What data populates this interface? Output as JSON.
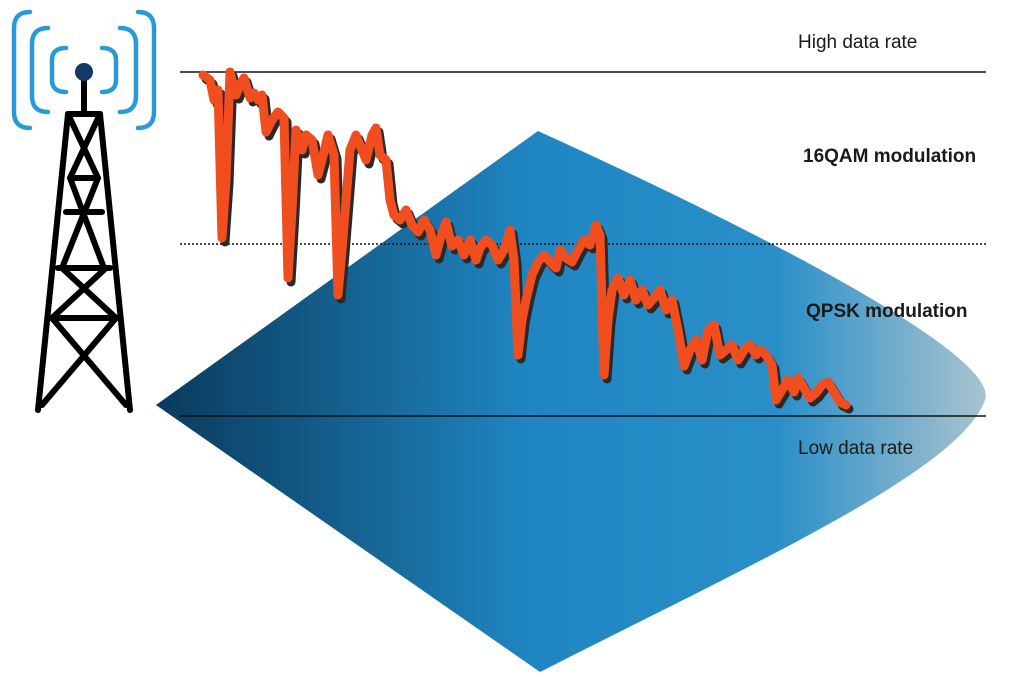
{
  "labels": {
    "high_data_rate": "High data rate",
    "modulation_16qam": "16QAM modulation",
    "modulation_qpsk": "QPSK modulation",
    "low_data_rate": "Low data rate"
  },
  "icons": {
    "tower": "cell-tower-icon",
    "signal": "radio-signal-icon"
  },
  "colors": {
    "coverage_dark": "#0a3a5c",
    "coverage_mid": "#1f86c2",
    "coverage_light": "#a9c3cf",
    "signal_trace": "#f04e1f",
    "signal_shadow": "#2a2a2a",
    "tower": "#000000",
    "tower_waves": "#2a9ad6",
    "tower_tip": "#123a66"
  }
}
